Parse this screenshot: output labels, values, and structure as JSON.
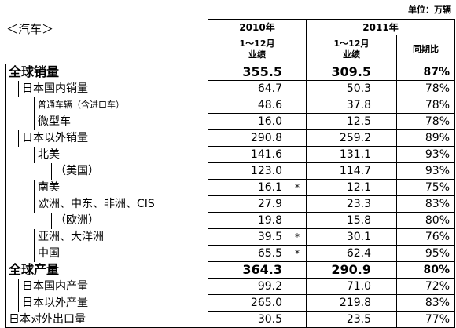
{
  "unit": "单位：万辆",
  "section": "＜汽车＞",
  "header": {
    "year_a": "2010年",
    "year_b": "2011年",
    "period_a": "1～12月",
    "result_a": "业绩",
    "period_b": "1～12月",
    "result_b": "业绩",
    "ratio": "同期比"
  },
  "rows": [
    {
      "label": "全球销量",
      "v2010": "355.5",
      "v2011": "309.5",
      "ratio": "87%"
    },
    {
      "label": "日本国内销量",
      "v2010": "64.7",
      "v2011": "50.3",
      "ratio": "78%"
    },
    {
      "label": "普通车辆（含进口车）",
      "v2010": "48.6",
      "v2011": "37.8",
      "ratio": "78%"
    },
    {
      "label": "微型车",
      "v2010": "16.0",
      "v2011": "12.5",
      "ratio": "78%"
    },
    {
      "label": "日本以外销量",
      "v2010": "290.8",
      "v2011": "259.2",
      "ratio": "89%"
    },
    {
      "label": "北美",
      "v2010": "141.6",
      "v2011": "131.1",
      "ratio": "93%"
    },
    {
      "label": "（美国）",
      "v2010": "123.0",
      "v2011": "114.7",
      "ratio": "93%"
    },
    {
      "label": "南美",
      "v2010": "16.1",
      "note": "*",
      "v2011": "12.1",
      "ratio": "75%"
    },
    {
      "label": "欧洲、中东、非洲、CIS",
      "v2010": "27.9",
      "v2011": "23.3",
      "ratio": "83%"
    },
    {
      "label": "（欧洲）",
      "v2010": "19.8",
      "v2011": "15.8",
      "ratio": "80%"
    },
    {
      "label": "亚洲、大洋洲",
      "v2010": "39.5",
      "note": "*",
      "v2011": "30.1",
      "ratio": "76%"
    },
    {
      "label": "中国",
      "v2010": "65.5",
      "note": "*",
      "v2011": "62.4",
      "ratio": "95%"
    },
    {
      "label": "全球产量",
      "v2010": "364.3",
      "v2011": "290.9",
      "ratio": "80%"
    },
    {
      "label": "日本国内产量",
      "v2010": "99.2",
      "v2011": "71.0",
      "ratio": "72%"
    },
    {
      "label": "日本以外产量",
      "v2010": "265.0",
      "v2011": "219.8",
      "ratio": "83%"
    },
    {
      "label": "日本对外出口量",
      "v2010": "30.5",
      "v2011": "23.5",
      "ratio": "77%"
    }
  ]
}
